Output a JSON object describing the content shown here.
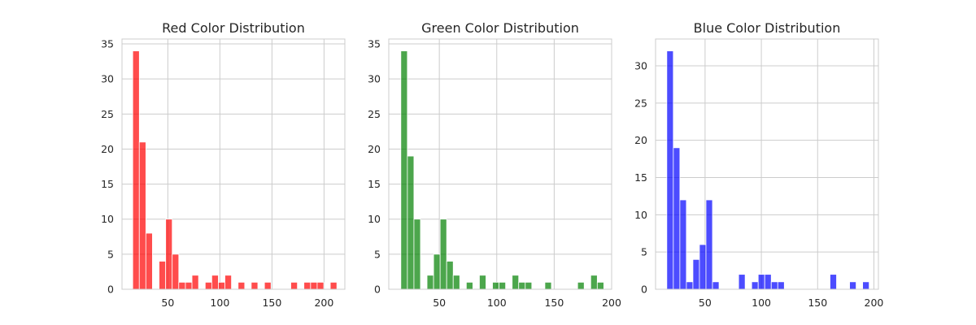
{
  "chart_data": [
    {
      "type": "bar",
      "title": "Red Color Distribution",
      "color": "#ff0000",
      "xlim": [
        6,
        220
      ],
      "ylim": [
        0,
        35.7
      ],
      "xticks": [
        50,
        100,
        150,
        200
      ],
      "yticks": [
        0,
        5,
        10,
        15,
        20,
        25,
        30,
        35
      ],
      "bin_width": 6.33,
      "bins": [
        {
          "x0": 16.3,
          "count": 34
        },
        {
          "x0": 22.6,
          "count": 21
        },
        {
          "x0": 28.9,
          "count": 8
        },
        {
          "x0": 41.6,
          "count": 4
        },
        {
          "x0": 47.9,
          "count": 10
        },
        {
          "x0": 54.2,
          "count": 5
        },
        {
          "x0": 60.5,
          "count": 1
        },
        {
          "x0": 66.9,
          "count": 1
        },
        {
          "x0": 73.2,
          "count": 2
        },
        {
          "x0": 85.9,
          "count": 1
        },
        {
          "x0": 92.2,
          "count": 2
        },
        {
          "x0": 98.5,
          "count": 1
        },
        {
          "x0": 104.8,
          "count": 2
        },
        {
          "x0": 117.5,
          "count": 1
        },
        {
          "x0": 130.1,
          "count": 1
        },
        {
          "x0": 142.8,
          "count": 1
        },
        {
          "x0": 168.1,
          "count": 1
        },
        {
          "x0": 180.7,
          "count": 1
        },
        {
          "x0": 187.1,
          "count": 1
        },
        {
          "x0": 193.4,
          "count": 1
        },
        {
          "x0": 206.0,
          "count": 1
        }
      ]
    },
    {
      "type": "bar",
      "title": "Green Color Distribution",
      "color": "#008000",
      "xlim": [
        6,
        200
      ],
      "ylim": [
        0,
        35.7
      ],
      "xticks": [
        50,
        100,
        150,
        200
      ],
      "yticks": [
        0,
        5,
        10,
        15,
        20,
        25,
        30,
        35
      ],
      "bin_width": 5.7,
      "bins": [
        {
          "x0": 16.5,
          "count": 34
        },
        {
          "x0": 22.2,
          "count": 19
        },
        {
          "x0": 27.9,
          "count": 10
        },
        {
          "x0": 39.3,
          "count": 2
        },
        {
          "x0": 45.0,
          "count": 5
        },
        {
          "x0": 50.7,
          "count": 10
        },
        {
          "x0": 56.4,
          "count": 4
        },
        {
          "x0": 62.1,
          "count": 2
        },
        {
          "x0": 73.5,
          "count": 1
        },
        {
          "x0": 84.9,
          "count": 2
        },
        {
          "x0": 96.3,
          "count": 1
        },
        {
          "x0": 102.0,
          "count": 1
        },
        {
          "x0": 113.4,
          "count": 2
        },
        {
          "x0": 119.1,
          "count": 1
        },
        {
          "x0": 124.8,
          "count": 1
        },
        {
          "x0": 141.9,
          "count": 1
        },
        {
          "x0": 170.4,
          "count": 1
        },
        {
          "x0": 181.8,
          "count": 2
        },
        {
          "x0": 187.5,
          "count": 1
        }
      ]
    },
    {
      "type": "bar",
      "title": "Blue Color Distribution",
      "color": "#0000ff",
      "xlim": [
        6,
        204
      ],
      "ylim": [
        0,
        33.6
      ],
      "xticks": [
        50,
        100,
        150,
        200
      ],
      "yticks": [
        0,
        5,
        10,
        15,
        20,
        25,
        30
      ],
      "bin_width": 5.8,
      "bins": [
        {
          "x0": 16.0,
          "count": 32
        },
        {
          "x0": 21.8,
          "count": 19
        },
        {
          "x0": 27.6,
          "count": 12
        },
        {
          "x0": 33.4,
          "count": 1
        },
        {
          "x0": 39.2,
          "count": 4
        },
        {
          "x0": 45.0,
          "count": 6
        },
        {
          "x0": 50.8,
          "count": 12
        },
        {
          "x0": 56.6,
          "count": 1
        },
        {
          "x0": 79.8,
          "count": 2
        },
        {
          "x0": 91.4,
          "count": 1
        },
        {
          "x0": 97.2,
          "count": 2
        },
        {
          "x0": 103.0,
          "count": 2
        },
        {
          "x0": 108.8,
          "count": 1
        },
        {
          "x0": 114.6,
          "count": 1
        },
        {
          "x0": 161.0,
          "count": 2
        },
        {
          "x0": 178.4,
          "count": 1
        },
        {
          "x0": 190.0,
          "count": 1
        }
      ]
    }
  ]
}
